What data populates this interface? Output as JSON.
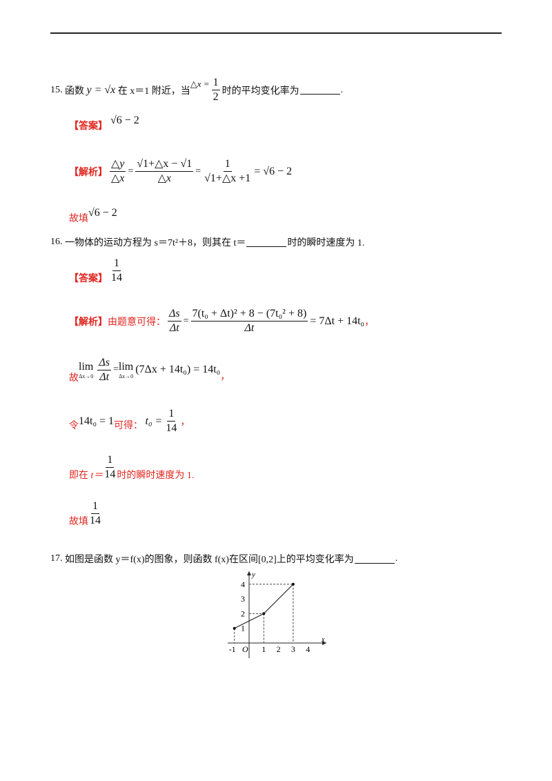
{
  "q15": {
    "number": "15.",
    "t1": "函数",
    "func": "y = √x",
    "t2": "在 x＝1 附近，当",
    "dx": "△x =",
    "dx_num": "1",
    "dx_den": "2",
    "t3": "时的平均变化率为",
    "end": ".",
    "answer_tag": "【答案】",
    "answer": "√6 − 2",
    "analysis_tag": "【解析】",
    "f1_num": "△y",
    "f1_den": "△x",
    "f2_num": "√1+△x − √1",
    "f2_den": "△x",
    "f3_num": "1",
    "f3_den": "√1+△x +1",
    "result": "= √6 − 2",
    "fill_label": "故填",
    "fill": "√6 − 2"
  },
  "q16": {
    "number": "16.",
    "text": "一物体的运动方程为 s＝7t²＋8，则其在 t＝",
    "text_end": "时的瞬时速度为 1.",
    "answer_tag": "【答案】",
    "ans_num": "1",
    "ans_den": "14",
    "analysis_tag": "【解析】",
    "analysis_text": "由题意可得：",
    "a_num1": "Δs",
    "a_den1": "Δt",
    "a_num2": "7(t₀ + Δt)² + 8 − (7t₀² + 8)",
    "a_den2": "Δt",
    "a_result": "= 7Δt + 14t₀",
    "a_comma": "，",
    "so": "故",
    "lim1": "lim",
    "lim_sub": "Δx→0",
    "l_num": "Δs",
    "l_den": "Δt",
    "lim_expr": "(7Δx + 14t₀) = 14t₀",
    "l_comma": "，",
    "let": "令",
    "let_expr": "14t₀ = 1",
    "get": "可得：",
    "t0": "t₀ =",
    "t0_num": "1",
    "t0_den": "14",
    "t0_comma": "，",
    "conc1": "即在",
    "conc_t": "t＝",
    "conc_num": "1",
    "conc_den": "14",
    "conc2": "时的瞬时速度为 1.",
    "fill_label": "故填",
    "fill_num": "1",
    "fill_den": "14"
  },
  "q17": {
    "number": "17.",
    "text": "如图是函数 y＝f(x)的图象，则函数 f(x)在区间[0,2]上的平均变化率为",
    "end": ".",
    "chart_data": {
      "type": "line",
      "xlabel": "x",
      "ylabel": "y",
      "origin": "O",
      "x_ticks": [
        "-1",
        "1",
        "2",
        "3",
        "4"
      ],
      "y_ticks": [
        "1",
        "2",
        "3",
        "4"
      ],
      "points": [
        {
          "x": -1,
          "y": 1
        },
        {
          "x": 1,
          "y": 2
        },
        {
          "x": 3,
          "y": 4
        }
      ],
      "xlim": [
        -1,
        4
      ],
      "ylim": [
        0,
        4
      ]
    }
  }
}
